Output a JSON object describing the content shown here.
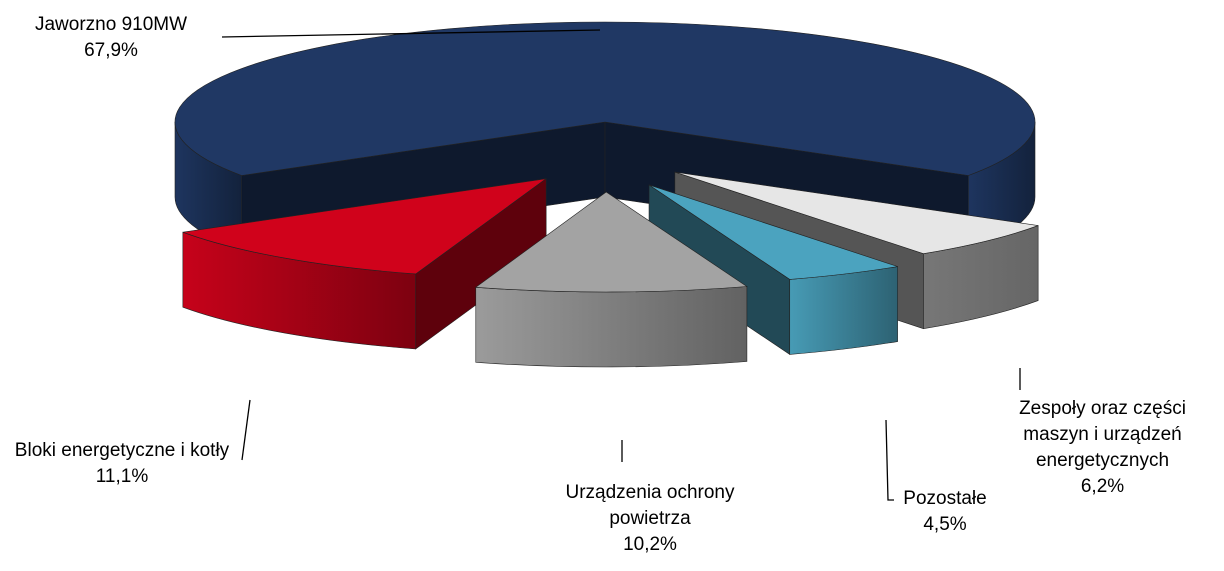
{
  "chart_data": {
    "type": "pie3d",
    "categories": [
      "Jaworzno 910MW",
      "Zespoły oraz części maszyn i urządzeń energetycznych",
      "Pozostałe",
      "Urządzenia ochrony powietrza",
      "Bloki energetyczne i kotły"
    ],
    "values": [
      67.9,
      6.2,
      4.5,
      10.2,
      11.1
    ],
    "value_labels": [
      "67,9%",
      "6,2%",
      "4,5%",
      "10,2%",
      "11,1%"
    ],
    "colors": [
      "#203864",
      "#e6e6e6",
      "#4ba3bf",
      "#a3a3a3",
      "#d0021b"
    ]
  }
}
